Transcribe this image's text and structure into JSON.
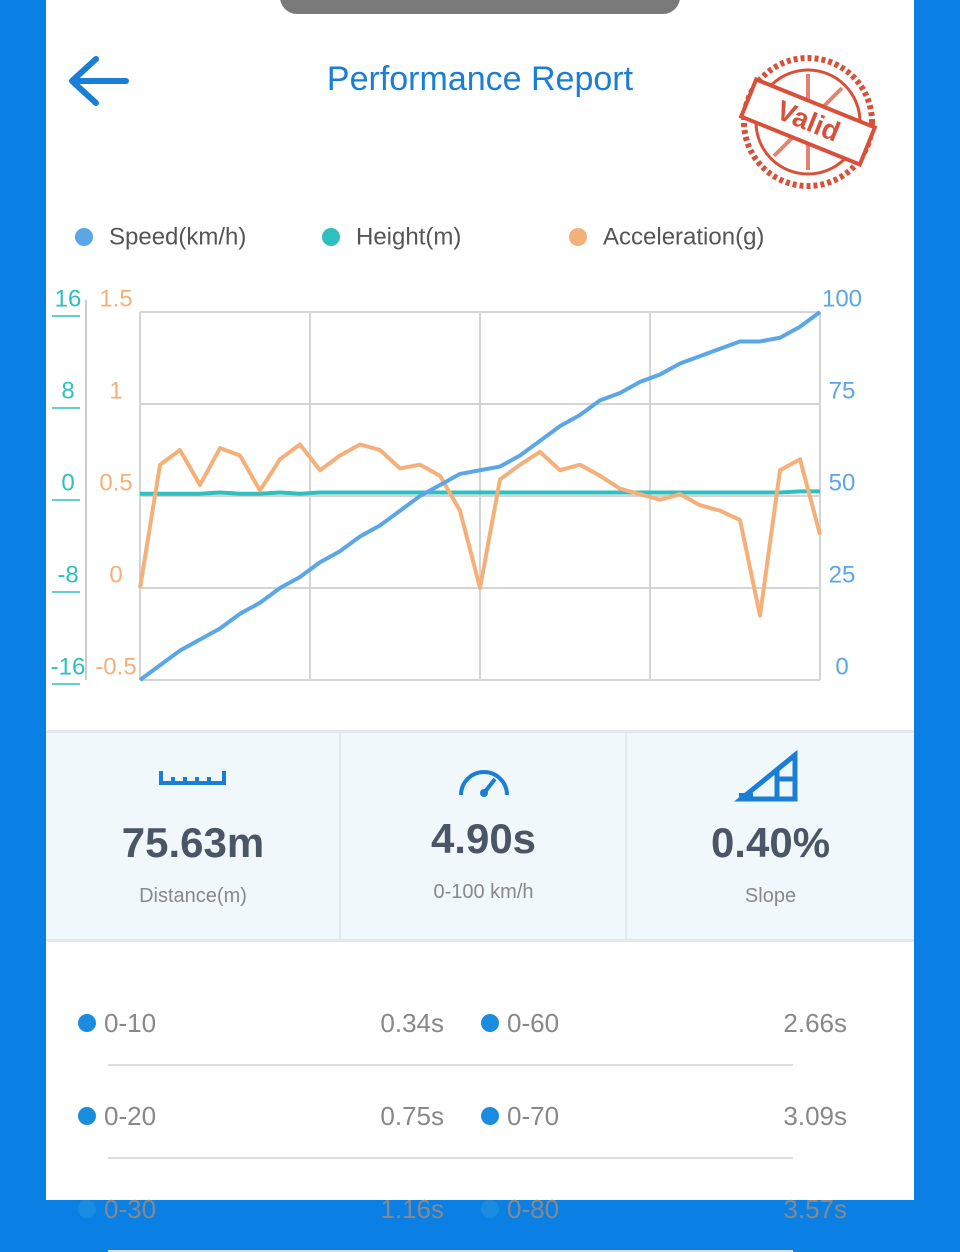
{
  "header": {
    "title": "Performance Report",
    "stamp": "Valid"
  },
  "chart_data": {
    "type": "line",
    "series": [
      {
        "name": "Speed(km/h)",
        "color": "#5aa6e6",
        "axis": "y2",
        "values": [
          0,
          4,
          8,
          11,
          14,
          18,
          21,
          25,
          28,
          32,
          35,
          39,
          42,
          46,
          50,
          53,
          56,
          57,
          58,
          61,
          65,
          69,
          72,
          76,
          78,
          81,
          83,
          86,
          88,
          90,
          92,
          92,
          93,
          96,
          100
        ]
      },
      {
        "name": "Height(m)",
        "color": "#2fbfbf",
        "axis": "y",
        "values": [
          0.2,
          0.2,
          0.2,
          0.2,
          0.3,
          0.2,
          0.2,
          0.3,
          0.2,
          0.3,
          0.3,
          0.3,
          0.3,
          0.3,
          0.3,
          0.3,
          0.3,
          0.3,
          0.3,
          0.3,
          0.3,
          0.3,
          0.3,
          0.3,
          0.3,
          0.3,
          0.3,
          0.3,
          0.3,
          0.3,
          0.3,
          0.3,
          0.3,
          0.4,
          0.4
        ]
      },
      {
        "name": "Acceleration(g)",
        "color": "#f5b07a",
        "axis": "y3",
        "values": [
          0,
          0.67,
          0.75,
          0.56,
          0.76,
          0.72,
          0.53,
          0.7,
          0.78,
          0.64,
          0.72,
          0.78,
          0.75,
          0.65,
          0.67,
          0.61,
          0.42,
          0,
          0.59,
          0.67,
          0.74,
          0.64,
          0.67,
          0.61,
          0.54,
          0.51,
          0.48,
          0.51,
          0.45,
          0.42,
          0.37,
          -0.15,
          0.64,
          0.7,
          0.29
        ]
      }
    ],
    "ylim": [
      -16,
      16
    ],
    "yticks": [
      -16,
      -8,
      0,
      8,
      16
    ],
    "y3lim": [
      -0.5,
      1.5
    ],
    "y3ticks": [
      -0.5,
      0,
      0.5,
      1,
      1.5
    ],
    "y2lim": [
      0,
      100
    ],
    "y2ticks": [
      0,
      25,
      50,
      75,
      100
    ],
    "grid": true
  },
  "stats": [
    {
      "value": "75.63m",
      "label": "Distance(m)"
    },
    {
      "value": "4.90s",
      "label": "0-100 km/h"
    },
    {
      "value": "0.40%",
      "label": "Slope"
    }
  ],
  "splits": [
    [
      {
        "range": "0-10",
        "time": "0.34s"
      },
      {
        "range": "0-60",
        "time": "2.66s"
      }
    ],
    [
      {
        "range": "0-20",
        "time": "0.75s"
      },
      {
        "range": "0-70",
        "time": "3.09s"
      }
    ],
    [
      {
        "range": "0-30",
        "time": "1.16s"
      },
      {
        "range": "0-80",
        "time": "3.57s"
      }
    ]
  ]
}
